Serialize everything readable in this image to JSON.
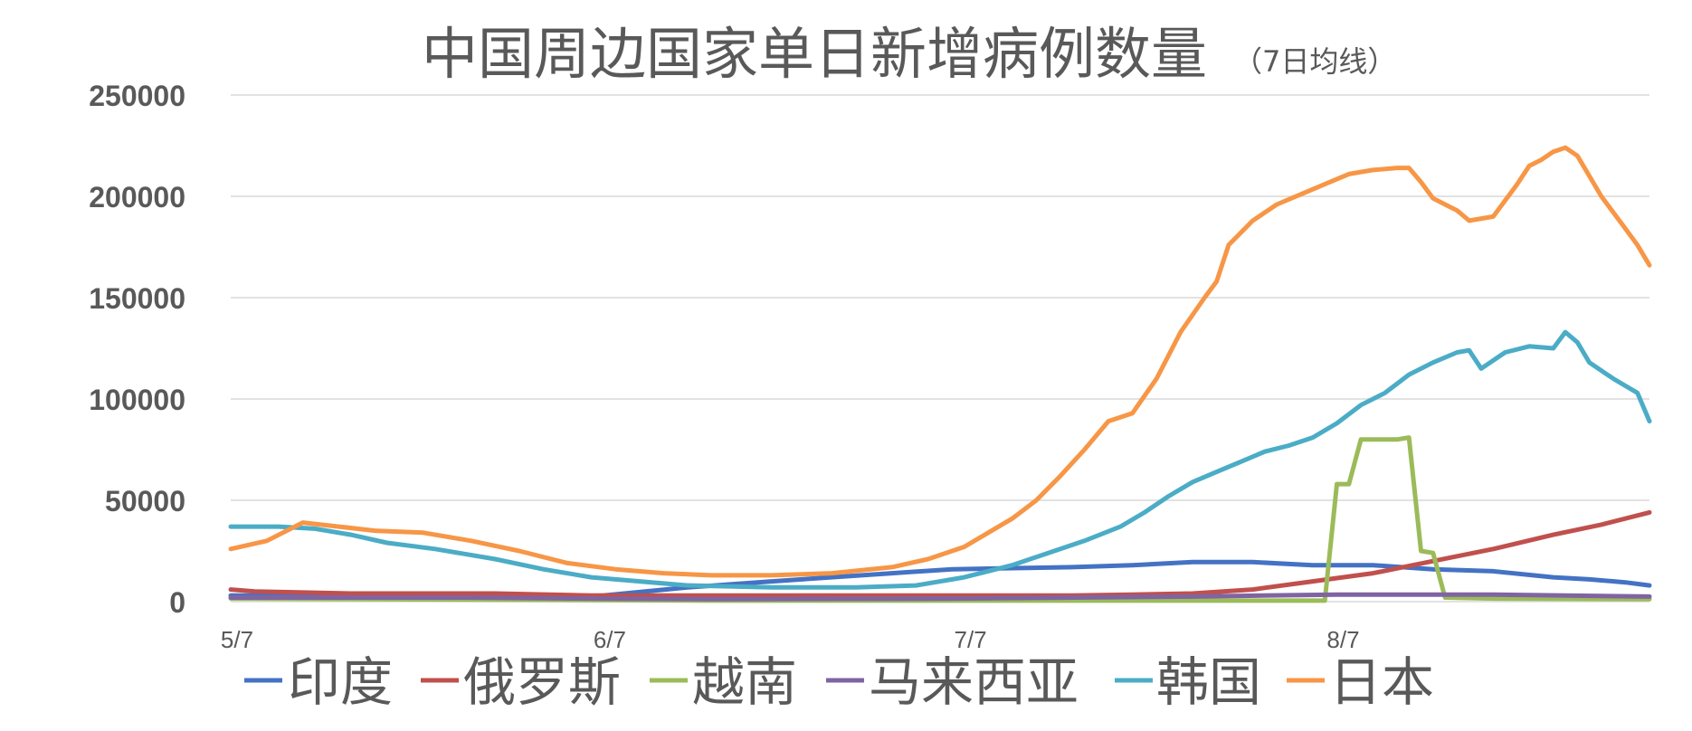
{
  "chart_data": {
    "type": "line",
    "title": "中国周边国家单日新增病例数量",
    "subtitle": "（7日均线）",
    "xlabel": "",
    "ylabel": "",
    "ylim": [
      0,
      250000
    ],
    "yticks": [
      0,
      50000,
      100000,
      150000,
      200000,
      250000
    ],
    "ytick_labels": [
      "0",
      "50000",
      "100000",
      "150000",
      "200000",
      "250000"
    ],
    "x_range": [
      0,
      118
    ],
    "xticks": [
      {
        "label": "5/7",
        "value": 0
      },
      {
        "label": "6/7",
        "value": 31
      },
      {
        "label": "7/7",
        "value": 61
      },
      {
        "label": "8/7",
        "value": 92
      }
    ],
    "grid": true,
    "legend_position": "bottom",
    "series": [
      {
        "name": "印度",
        "color": "#4472C4",
        "points": [
          [
            0,
            3000
          ],
          [
            10,
            3000
          ],
          [
            25,
            2500
          ],
          [
            31,
            3000
          ],
          [
            38,
            7000
          ],
          [
            45,
            10000
          ],
          [
            55,
            14000
          ],
          [
            60,
            16000
          ],
          [
            65,
            16500
          ],
          [
            70,
            17000
          ],
          [
            75,
            18000
          ],
          [
            80,
            19500
          ],
          [
            85,
            19500
          ],
          [
            90,
            18000
          ],
          [
            95,
            18000
          ],
          [
            100,
            16000
          ],
          [
            105,
            15000
          ],
          [
            110,
            12000
          ],
          [
            113,
            11000
          ],
          [
            116,
            9500
          ],
          [
            118,
            8000
          ]
        ]
      },
      {
        "name": "俄罗斯",
        "color": "#C0504D",
        "points": [
          [
            0,
            6000
          ],
          [
            2,
            5000
          ],
          [
            10,
            4000
          ],
          [
            22,
            4000
          ],
          [
            30,
            3000
          ],
          [
            40,
            3000
          ],
          [
            55,
            3000
          ],
          [
            65,
            3000
          ],
          [
            70,
            3000
          ],
          [
            75,
            3500
          ],
          [
            80,
            4000
          ],
          [
            85,
            6000
          ],
          [
            90,
            10000
          ],
          [
            95,
            14000
          ],
          [
            100,
            20000
          ],
          [
            105,
            26000
          ],
          [
            110,
            33000
          ],
          [
            114,
            38000
          ],
          [
            118,
            44000
          ]
        ]
      },
      {
        "name": "越南",
        "color": "#9BBB59",
        "points": [
          [
            0,
            1500
          ],
          [
            20,
            1000
          ],
          [
            40,
            500
          ],
          [
            91,
            500
          ],
          [
            92,
            58000
          ],
          [
            93,
            58000
          ],
          [
            94,
            80000
          ],
          [
            97,
            80000
          ],
          [
            98,
            81000
          ],
          [
            99,
            25000
          ],
          [
            100,
            24000
          ],
          [
            101,
            2000
          ],
          [
            105,
            1500
          ],
          [
            118,
            1200
          ]
        ]
      },
      {
        "name": "马来西亚",
        "color": "#8064A2",
        "points": [
          [
            0,
            2000
          ],
          [
            10,
            2000
          ],
          [
            20,
            2000
          ],
          [
            30,
            1500
          ],
          [
            40,
            1200
          ],
          [
            60,
            1500
          ],
          [
            80,
            2500
          ],
          [
            92,
            3500
          ],
          [
            105,
            3500
          ],
          [
            118,
            2500
          ]
        ]
      },
      {
        "name": "韩国",
        "color": "#4BACC6",
        "points": [
          [
            0,
            37000
          ],
          [
            4,
            37000
          ],
          [
            7,
            36000
          ],
          [
            10,
            33000
          ],
          [
            13,
            29000
          ],
          [
            17,
            26000
          ],
          [
            22,
            21000
          ],
          [
            26,
            16000
          ],
          [
            30,
            12000
          ],
          [
            34,
            10000
          ],
          [
            38,
            8000
          ],
          [
            45,
            7000
          ],
          [
            52,
            7000
          ],
          [
            57,
            8000
          ],
          [
            61,
            12000
          ],
          [
            65,
            18000
          ],
          [
            68,
            24000
          ],
          [
            71,
            30000
          ],
          [
            74,
            37000
          ],
          [
            76,
            44000
          ],
          [
            78,
            52000
          ],
          [
            80,
            59000
          ],
          [
            82,
            64000
          ],
          [
            84,
            69000
          ],
          [
            86,
            74000
          ],
          [
            88,
            77000
          ],
          [
            90,
            81000
          ],
          [
            92,
            88000
          ],
          [
            94,
            97000
          ],
          [
            96,
            103000
          ],
          [
            98,
            112000
          ],
          [
            100,
            118000
          ],
          [
            102,
            123000
          ],
          [
            103,
            124000
          ],
          [
            104,
            115000
          ],
          [
            106,
            123000
          ],
          [
            108,
            126000
          ],
          [
            110,
            125000
          ],
          [
            111,
            133000
          ],
          [
            112,
            128000
          ],
          [
            113,
            118000
          ],
          [
            115,
            110000
          ],
          [
            117,
            103000
          ],
          [
            118,
            89000
          ]
        ]
      },
      {
        "name": "日本",
        "color": "#F79646",
        "points": [
          [
            0,
            26000
          ],
          [
            3,
            30000
          ],
          [
            6,
            39000
          ],
          [
            9,
            37000
          ],
          [
            12,
            35000
          ],
          [
            16,
            34000
          ],
          [
            20,
            30000
          ],
          [
            24,
            25000
          ],
          [
            28,
            19000
          ],
          [
            32,
            16000
          ],
          [
            36,
            14000
          ],
          [
            40,
            13000
          ],
          [
            45,
            13000
          ],
          [
            50,
            14000
          ],
          [
            55,
            17000
          ],
          [
            58,
            21000
          ],
          [
            61,
            27000
          ],
          [
            63,
            34000
          ],
          [
            65,
            41000
          ],
          [
            67,
            50000
          ],
          [
            69,
            62000
          ],
          [
            71,
            75000
          ],
          [
            73,
            89000
          ],
          [
            75,
            93000
          ],
          [
            77,
            110000
          ],
          [
            79,
            133000
          ],
          [
            81,
            150000
          ],
          [
            82,
            158000
          ],
          [
            83,
            176000
          ],
          [
            85,
            188000
          ],
          [
            87,
            196000
          ],
          [
            89,
            201000
          ],
          [
            91,
            206000
          ],
          [
            93,
            211000
          ],
          [
            95,
            213000
          ],
          [
            97,
            214000
          ],
          [
            98,
            214000
          ],
          [
            99,
            207000
          ],
          [
            100,
            199000
          ],
          [
            101,
            196000
          ],
          [
            102,
            193000
          ],
          [
            103,
            188000
          ],
          [
            105,
            190000
          ],
          [
            107,
            206000
          ],
          [
            108,
            215000
          ],
          [
            109,
            218000
          ],
          [
            110,
            222000
          ],
          [
            111,
            224000
          ],
          [
            112,
            220000
          ],
          [
            113,
            210000
          ],
          [
            114,
            200000
          ],
          [
            115,
            192000
          ],
          [
            116,
            184000
          ],
          [
            117,
            176000
          ],
          [
            118,
            166000
          ]
        ]
      }
    ]
  }
}
